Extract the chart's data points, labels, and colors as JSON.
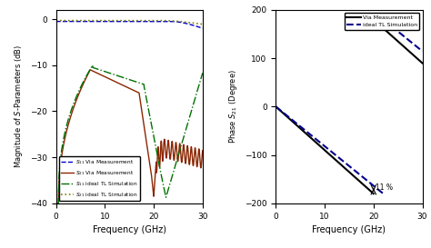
{
  "left_plot": {
    "xlabel": "Frequency (GHz)",
    "ylabel": "Magnitude of $S$-Parameters (dB)",
    "xlim": [
      0,
      30
    ],
    "ylim": [
      -40,
      2
    ],
    "yticks": [
      0,
      -10,
      -20,
      -30,
      -40
    ],
    "xticks": [
      0,
      10,
      20,
      30
    ],
    "legend": [
      {
        "label": "$S_{11}$ Via Measurement",
        "color": "#0000CC",
        "linestyle": "--",
        "linewidth": 1.0
      },
      {
        "label": "$S_{21}$ Via Measurement",
        "color": "#8B2500",
        "linestyle": "-",
        "linewidth": 1.0
      },
      {
        "label": "$S_{11}$ ideal TL Simulation",
        "color": "#007000",
        "linestyle": "-.",
        "linewidth": 1.0
      },
      {
        "label": "$S_{21}$ ideal TL Simulation",
        "color": "#808000",
        "linestyle": ":",
        "linewidth": 1.2
      }
    ]
  },
  "right_plot": {
    "xlabel": "Frequency (GHz)",
    "ylabel": "Phase $S_{21}$ (Degree)",
    "xlim": [
      0,
      30
    ],
    "ylim": [
      -200,
      200
    ],
    "yticks": [
      -200,
      -100,
      0,
      100,
      200
    ],
    "xticks": [
      0,
      10,
      20,
      30
    ],
    "annotation_text": "11 %",
    "legend": [
      {
        "label": "Via Measurement",
        "color": "#000000",
        "linestyle": "-",
        "linewidth": 1.5
      },
      {
        "label": "ideal TL Simulation",
        "color": "#00008B",
        "linestyle": "--",
        "linewidth": 1.5
      }
    ]
  },
  "background_color": "#ffffff"
}
